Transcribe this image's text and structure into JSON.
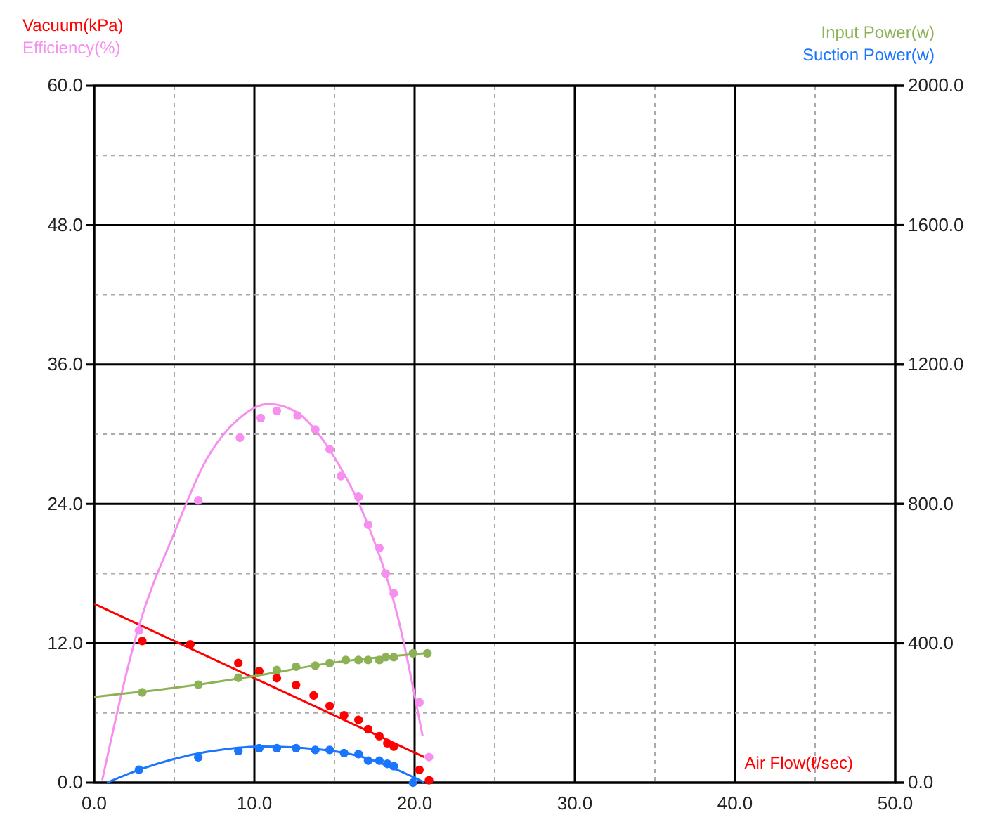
{
  "chart_data": {
    "type": "scatter",
    "xlabel": "Air Flow(ℓ/sec)",
    "legend": "top",
    "grid": true,
    "xlim": [
      0,
      50
    ],
    "xticks": [
      {
        "value": 0,
        "label": "0.0"
      },
      {
        "value": 5,
        "label": null
      },
      {
        "value": 10,
        "label": "10.0"
      },
      {
        "value": 15,
        "label": null
      },
      {
        "value": 20,
        "label": "20.0"
      },
      {
        "value": 25,
        "label": null
      },
      {
        "value": 30,
        "label": "30.0"
      },
      {
        "value": 35,
        "label": null
      },
      {
        "value": 40,
        "label": "40.0"
      },
      {
        "value": 45,
        "label": null
      },
      {
        "value": 50,
        "label": "50.0"
      }
    ],
    "ylim": [
      0,
      60
    ],
    "yticks": [
      {
        "value": 0,
        "label": "0.0"
      },
      {
        "value": 6,
        "label": null
      },
      {
        "value": 12,
        "label": "12.0"
      },
      {
        "value": 18,
        "label": null
      },
      {
        "value": 24,
        "label": "24.0"
      },
      {
        "value": 30,
        "label": null
      },
      {
        "value": 36,
        "label": "36.0"
      },
      {
        "value": 42,
        "label": null
      },
      {
        "value": 48,
        "label": "48.0"
      },
      {
        "value": 54,
        "label": null
      },
      {
        "value": 60,
        "label": "60.0"
      }
    ],
    "y2lim": [
      0,
      2000
    ],
    "y2ticks": [
      {
        "value": 0,
        "label": "0.0"
      },
      {
        "value": 400,
        "label": "400.0"
      },
      {
        "value": 800,
        "label": "800.0"
      },
      {
        "value": 1200,
        "label": "1200.0"
      },
      {
        "value": 1600,
        "label": "1600.0"
      },
      {
        "value": 2000,
        "label": "2000.0"
      }
    ],
    "series": [
      {
        "name": "Vacuum(kPa)",
        "marker": "circle",
        "color": "#ff0000",
        "x": [
          3.0,
          6.0,
          9.0,
          10.3,
          11.4,
          12.6,
          13.7,
          14.7,
          15.6,
          16.5,
          17.1,
          17.8,
          18.3,
          18.7,
          20.3,
          20.9
        ],
        "values": [
          12.2,
          11.9,
          10.3,
          9.6,
          9.0,
          8.4,
          7.5,
          6.6,
          5.8,
          5.4,
          4.6,
          4.0,
          3.4,
          3.1,
          1.1,
          0.2
        ]
      },
      {
        "type": "line",
        "color": "#ff0000",
        "x": [
          0,
          20.6
        ],
        "values": [
          15.4,
          2.2
        ]
      },
      {
        "name": "Efficiency(%)",
        "marker": "circle",
        "color": "#f78ff0",
        "x": [
          2.8,
          6.5,
          9.1,
          10.4,
          11.4,
          12.7,
          13.8,
          14.7,
          15.4,
          16.5,
          17.1,
          17.8,
          18.2,
          18.7,
          20.3,
          20.9
        ],
        "values": [
          13.1,
          24.3,
          29.7,
          31.4,
          32.0,
          31.6,
          30.4,
          28.7,
          26.4,
          24.6,
          22.2,
          20.2,
          18.0,
          16.3,
          6.9,
          2.2
        ]
      },
      {
        "type": "line",
        "color": "#f78ff0",
        "x": [
          0.5,
          2.8,
          5,
          7,
          9,
          10.9,
          12.5,
          15,
          17,
          19,
          20.5
        ],
        "values": [
          0.2,
          13.5,
          21.5,
          27.8,
          31.3,
          32.6,
          32.0,
          28.0,
          22.5,
          14.0,
          4.0
        ]
      },
      {
        "name": "Input Power(w)",
        "marker": "circle",
        "axis": "y2",
        "color": "#8db255",
        "x": [
          3.0,
          6.5,
          9.0,
          11.4,
          12.6,
          13.8,
          14.7,
          15.7,
          16.5,
          17.1,
          17.8,
          18.2,
          18.7,
          19.9,
          20.8
        ],
        "values": [
          259,
          281,
          301,
          323,
          333,
          336,
          343,
          352,
          352,
          352,
          352,
          360,
          360,
          371,
          371
        ]
      },
      {
        "type": "line",
        "axis": "y2",
        "color": "#8db255",
        "x": [
          0,
          5,
          10,
          15,
          20.8
        ],
        "values": [
          246,
          272,
          306,
          345,
          372
        ]
      },
      {
        "name": "Suction Power(w)",
        "marker": "circle",
        "axis": "y2",
        "color": "#1a75ff",
        "x": [
          2.8,
          6.5,
          9.0,
          10.3,
          11.4,
          12.6,
          13.8,
          14.7,
          15.6,
          16.5,
          17.1,
          17.8,
          18.3,
          18.7,
          19.9
        ],
        "values": [
          37,
          73,
          91,
          99,
          99,
          99,
          94,
          94,
          85,
          82,
          63,
          63,
          54,
          47,
          0
        ]
      },
      {
        "type": "line",
        "axis": "y2",
        "color": "#1a75ff",
        "x": [
          0.8,
          3,
          5,
          7,
          10.5,
          14,
          17,
          19,
          20.6
        ],
        "values": [
          0,
          40,
          68,
          88,
          104,
          96,
          70,
          35,
          1
        ]
      }
    ]
  }
}
